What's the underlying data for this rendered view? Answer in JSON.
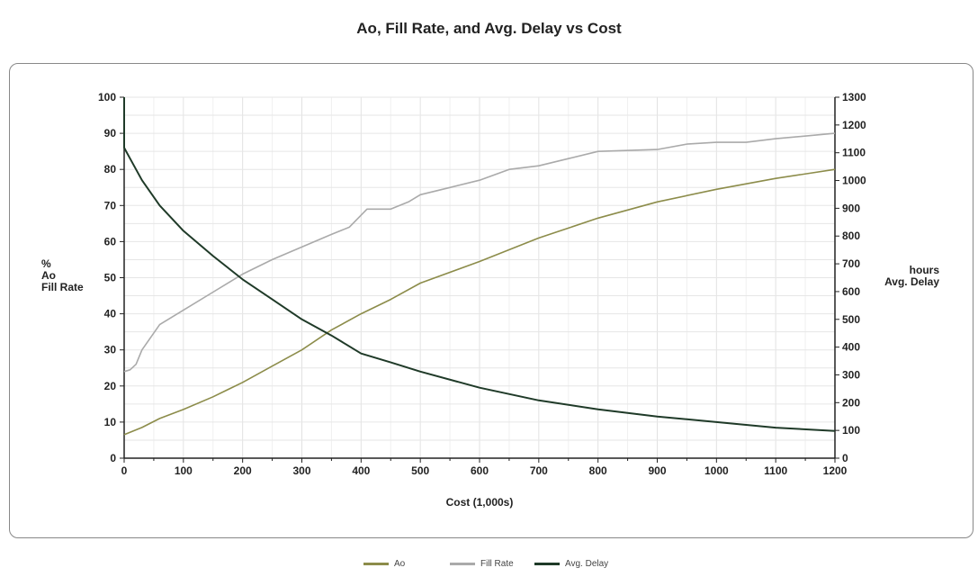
{
  "chart_data": {
    "type": "line",
    "title": "Ao, Fill Rate, and Avg. Delay vs Cost",
    "xlabel": "Cost (1,000s)",
    "ylabel_left": [
      "%",
      "Ao",
      "Fill Rate"
    ],
    "ylabel_right": [
      "hours",
      "Avg. Delay"
    ],
    "xlim": [
      0,
      1200
    ],
    "ylim_left": [
      0,
      100
    ],
    "ylim_right": [
      0,
      1300
    ],
    "xticks": [
      0,
      100,
      200,
      300,
      400,
      500,
      600,
      700,
      800,
      900,
      1000,
      1100,
      1200
    ],
    "yticks_left": [
      0,
      10,
      20,
      30,
      40,
      50,
      60,
      70,
      80,
      90,
      100
    ],
    "yticks_right": [
      0,
      100,
      200,
      300,
      400,
      500,
      600,
      700,
      800,
      900,
      1000,
      1100,
      1200,
      1300
    ],
    "grid": true,
    "legend_placement": "bottom",
    "series": [
      {
        "name": "Ao",
        "axis": "left",
        "color": "#8c8c4a",
        "x": [
          0,
          30,
          60,
          100,
          150,
          200,
          250,
          300,
          350,
          400,
          450,
          500,
          600,
          700,
          800,
          900,
          1000,
          1100,
          1200
        ],
        "y": [
          6.5,
          8.5,
          11,
          13.5,
          17,
          21,
          25.5,
          30,
          35.5,
          40,
          44,
          48.5,
          54.5,
          61,
          66.5,
          71,
          74.5,
          77.5,
          80
        ]
      },
      {
        "name": "Fill Rate",
        "axis": "left",
        "color": "#aaaaaa",
        "x": [
          0,
          10,
          20,
          30,
          60,
          100,
          150,
          200,
          250,
          300,
          350,
          380,
          410,
          450,
          480,
          500,
          550,
          600,
          650,
          700,
          750,
          800,
          900,
          950,
          1000,
          1050,
          1100,
          1200
        ],
        "y": [
          24,
          24.5,
          26,
          30,
          37,
          41,
          46,
          51,
          55,
          58.5,
          62,
          64,
          69,
          69,
          71,
          73,
          75,
          77,
          80,
          81,
          83,
          85,
          85.5,
          87,
          87.5,
          87.5,
          88.5,
          90
        ]
      },
      {
        "name": "Avg. Delay",
        "axis": "right",
        "color": "#1f3a28",
        "x": [
          0,
          0,
          10,
          30,
          60,
          100,
          150,
          200,
          250,
          300,
          350,
          400,
          450,
          500,
          600,
          700,
          800,
          900,
          1000,
          1100,
          1200
        ],
        "y": [
          1300,
          1118,
          1079,
          1001,
          910,
          819,
          728,
          644,
          572,
          500,
          442,
          377,
          345,
          312,
          254,
          208,
          176,
          150,
          130,
          110,
          98
        ]
      }
    ]
  }
}
